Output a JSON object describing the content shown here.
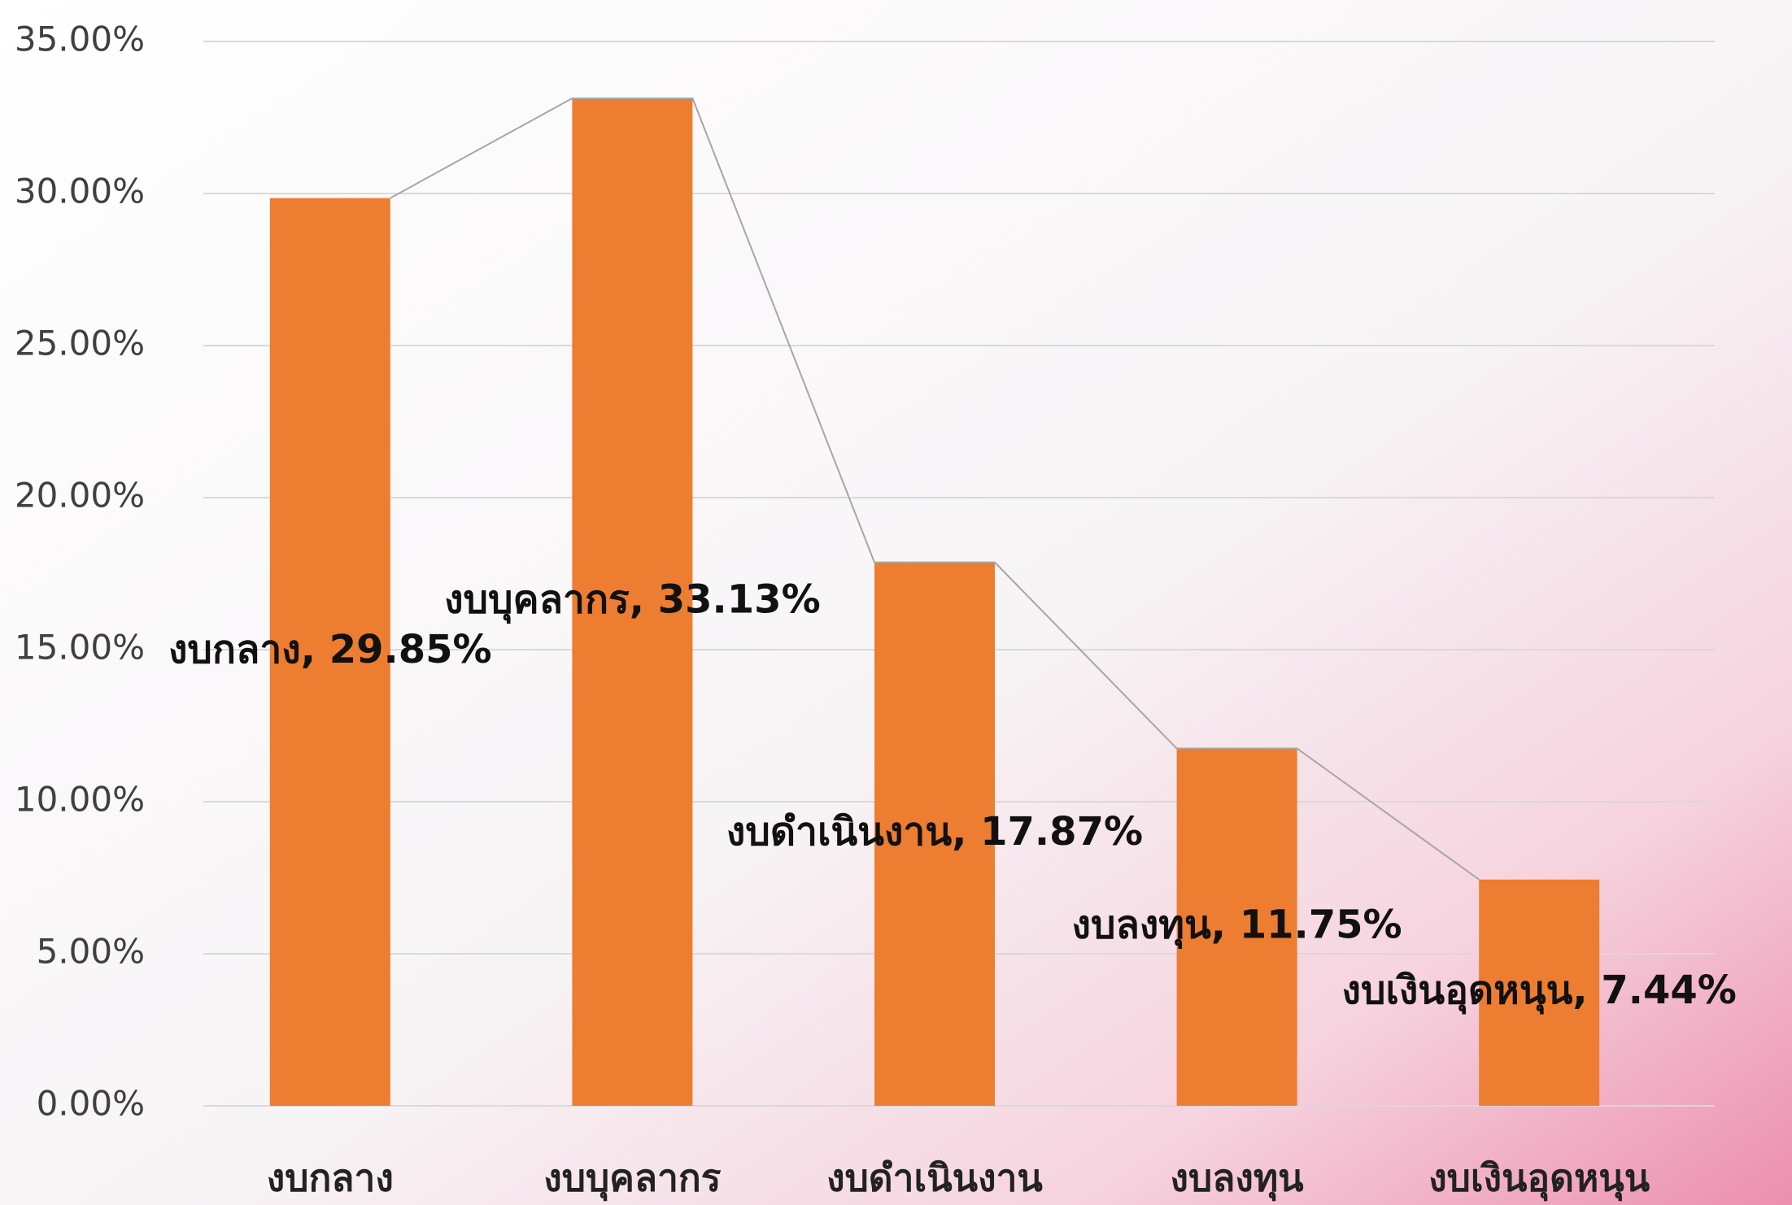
{
  "chart_data": {
    "type": "bar",
    "categories": [
      "งบกลาง",
      "งบบุคลากร",
      "งบดำเนินงาน",
      "งบลงทุน",
      "งบเงินอุดหนุน"
    ],
    "values": [
      29.85,
      33.13,
      17.87,
      11.75,
      7.44
    ],
    "value_labels": [
      "งบกลาง, 29.85%",
      "งบบุคลากร, 33.13%",
      "งบดำเนินงาน, 17.87%",
      "งบลงทุน, 11.75%",
      "งบเงินอุดหนุน, 7.44%"
    ],
    "color": "#ed7d31",
    "line_color": "#a6a6a6",
    "ylim": [
      0,
      35
    ],
    "yticks": [
      {
        "value": 0,
        "label": "0.00%"
      },
      {
        "value": 5,
        "label": "5.00%"
      },
      {
        "value": 10,
        "label": "10.00%"
      },
      {
        "value": 15,
        "label": "15.00%"
      },
      {
        "value": 20,
        "label": "20.00%"
      },
      {
        "value": 25,
        "label": "25.00%"
      },
      {
        "value": 30,
        "label": "30.00%"
      },
      {
        "value": 35,
        "label": "35.00%"
      }
    ],
    "grid": true
  }
}
